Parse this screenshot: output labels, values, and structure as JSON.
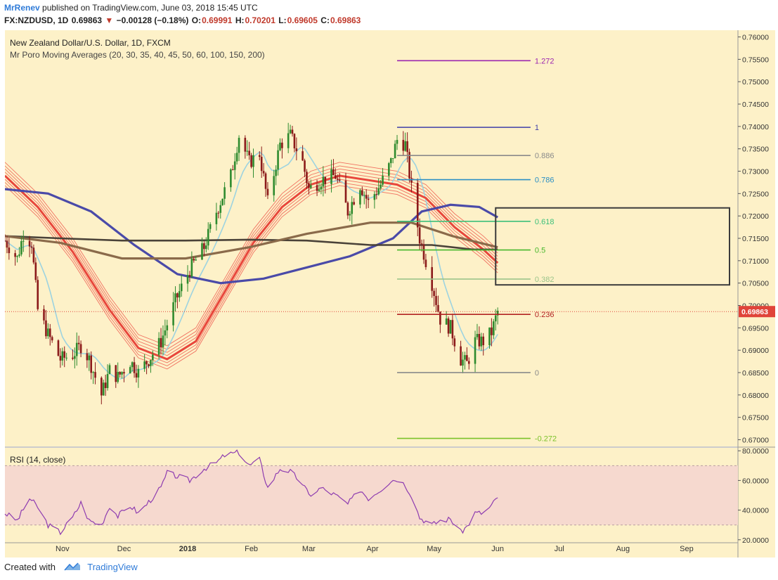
{
  "header": {
    "author": "MrRenev",
    "published": "published on TradingView.com, June 03, 2018 15:45 UTC",
    "symbol": "FX:NZDUSD, 1D",
    "last": "0.69863",
    "change": "−0.00128 (−0.18%)",
    "open_label": "O:",
    "open": "0.69991",
    "high_label": "H:",
    "high": "0.70201",
    "low_label": "L:",
    "low": "0.69605",
    "close_label": "C:",
    "close": "0.69863"
  },
  "footer": {
    "created_with": "Created with",
    "brand": "TradingView"
  },
  "colors": {
    "background": "#fdf1c8",
    "up": "#2e8b2e",
    "down": "#8b1a1a",
    "price_tag": "#e0443a",
    "rsi_band": "#f6d9cf",
    "rsi_line": "#8e3cb0"
  },
  "chart_data": [
    {
      "type": "candlestick",
      "title": "New Zealand Dollar/U.S. Dollar, 1D, FXCM",
      "indicator": "Mr Poro Moving Averages (20, 30, 35, 40, 45, 50, 60, 100, 150, 200)",
      "ylim": [
        0.6685,
        0.7615
      ],
      "y_ticks": [
        "0.76000",
        "0.75500",
        "0.75000",
        "0.74500",
        "0.74000",
        "0.73500",
        "0.73000",
        "0.72500",
        "0.72000",
        "0.71500",
        "0.71000",
        "0.70500",
        "0.70000",
        "0.69500",
        "0.69000",
        "0.68500",
        "0.68000",
        "0.67500",
        "0.67000"
      ],
      "x_ticks": [
        {
          "label": "Nov",
          "date": "2017-11-01"
        },
        {
          "label": "Dec",
          "date": "2017-12-01"
        },
        {
          "label": "2018",
          "date": "2018-01-01"
        },
        {
          "label": "Feb",
          "date": "2018-02-01"
        },
        {
          "label": "Mar",
          "date": "2018-03-01"
        },
        {
          "label": "Apr",
          "date": "2018-04-01"
        },
        {
          "label": "May",
          "date": "2018-05-01"
        },
        {
          "label": "Jun",
          "date": "2018-06-01"
        },
        {
          "label": "Jul",
          "date": "2018-07-01"
        },
        {
          "label": "Aug",
          "date": "2018-08-01"
        },
        {
          "label": "Sep",
          "date": "2018-09-01"
        }
      ],
      "xlim": [
        "2017-10-04",
        "2018-09-26"
      ],
      "last_price": "0.69863",
      "close_path": [
        [
          "2017-10-04",
          0.7145
        ],
        [
          "2017-10-10",
          0.7105
        ],
        [
          "2017-10-13",
          0.716
        ],
        [
          "2017-10-17",
          0.714
        ],
        [
          "2017-10-20",
          0.699
        ],
        [
          "2017-10-25",
          0.6935
        ],
        [
          "2017-10-31",
          0.688
        ],
        [
          "2017-11-06",
          0.689
        ],
        [
          "2017-11-10",
          0.691
        ],
        [
          "2017-11-14",
          0.688
        ],
        [
          "2017-11-17",
          0.684
        ],
        [
          "2017-11-20",
          0.68
        ],
        [
          "2017-11-24",
          0.6855
        ],
        [
          "2017-11-28",
          0.684
        ],
        [
          "2017-12-04",
          0.6875
        ],
        [
          "2017-12-08",
          0.685
        ],
        [
          "2017-12-14",
          0.6885
        ],
        [
          "2017-12-19",
          0.692
        ],
        [
          "2017-12-26",
          0.701
        ],
        [
          "2018-01-02",
          0.708
        ],
        [
          "2018-01-09",
          0.713
        ],
        [
          "2018-01-15",
          0.721
        ],
        [
          "2018-01-22",
          0.729
        ],
        [
          "2018-01-26",
          0.738
        ],
        [
          "2018-01-31",
          0.732
        ],
        [
          "2018-02-05",
          0.734
        ],
        [
          "2018-02-09",
          0.723
        ],
        [
          "2018-02-15",
          0.736
        ],
        [
          "2018-02-20",
          0.738
        ],
        [
          "2018-02-26",
          0.732
        ],
        [
          "2018-03-01",
          0.726
        ],
        [
          "2018-03-07",
          0.728
        ],
        [
          "2018-03-14",
          0.729
        ],
        [
          "2018-03-20",
          0.721
        ],
        [
          "2018-03-26",
          0.727
        ],
        [
          "2018-03-30",
          0.723
        ],
        [
          "2018-04-05",
          0.727
        ],
        [
          "2018-04-10",
          0.732
        ],
        [
          "2018-04-13",
          0.737
        ],
        [
          "2018-04-17",
          0.736
        ],
        [
          "2018-04-20",
          0.726
        ],
        [
          "2018-04-24",
          0.715
        ],
        [
          "2018-04-30",
          0.705
        ],
        [
          "2018-05-04",
          0.697
        ],
        [
          "2018-05-09",
          0.695
        ],
        [
          "2018-05-14",
          0.688
        ],
        [
          "2018-05-17",
          0.687
        ],
        [
          "2018-05-21",
          0.692
        ],
        [
          "2018-05-25",
          0.692
        ],
        [
          "2018-05-29",
          0.694
        ],
        [
          "2018-06-01",
          0.6986
        ]
      ],
      "ma_fast_path": [
        [
          "2017-10-04",
          0.729
        ],
        [
          "2017-10-20",
          0.722
        ],
        [
          "2017-11-06",
          0.712
        ],
        [
          "2017-11-24",
          0.699
        ],
        [
          "2017-12-08",
          0.6905
        ],
        [
          "2017-12-22",
          0.688
        ],
        [
          "2018-01-05",
          0.692
        ],
        [
          "2018-01-19",
          0.703
        ],
        [
          "2018-02-02",
          0.714
        ],
        [
          "2018-02-16",
          0.722
        ],
        [
          "2018-03-02",
          0.727
        ],
        [
          "2018-03-16",
          0.729
        ],
        [
          "2018-03-30",
          0.728
        ],
        [
          "2018-04-13",
          0.727
        ],
        [
          "2018-04-27",
          0.724
        ],
        [
          "2018-05-11",
          0.7175
        ],
        [
          "2018-05-25",
          0.7125
        ],
        [
          "2018-06-01",
          0.7095
        ]
      ],
      "ma_100_path": [
        [
          "2017-10-04",
          0.726
        ],
        [
          "2017-10-25",
          0.725
        ],
        [
          "2017-11-15",
          0.721
        ],
        [
          "2017-12-06",
          0.7135
        ],
        [
          "2017-12-27",
          0.707
        ],
        [
          "2018-01-17",
          0.705
        ],
        [
          "2018-02-07",
          0.706
        ],
        [
          "2018-02-28",
          0.7085
        ],
        [
          "2018-03-21",
          0.711
        ],
        [
          "2018-04-11",
          0.715
        ],
        [
          "2018-04-25",
          0.721
        ],
        [
          "2018-05-09",
          0.7225
        ],
        [
          "2018-05-23",
          0.722
        ],
        [
          "2018-06-01",
          0.7197
        ]
      ],
      "ma_150_path": [
        [
          "2017-10-04",
          0.7155
        ],
        [
          "2017-10-31",
          0.715
        ],
        [
          "2017-11-30",
          0.7145
        ],
        [
          "2017-12-31",
          0.7145
        ],
        [
          "2018-01-31",
          0.7147
        ],
        [
          "2018-02-28",
          0.7145
        ],
        [
          "2018-03-31",
          0.7135
        ],
        [
          "2018-04-30",
          0.7135
        ],
        [
          "2018-05-20",
          0.7125
        ],
        [
          "2018-06-01",
          0.7125
        ]
      ],
      "ma_200_path": [
        [
          "2017-10-04",
          0.7155
        ],
        [
          "2017-10-31",
          0.714
        ],
        [
          "2017-11-30",
          0.7105
        ],
        [
          "2017-12-31",
          0.7105
        ],
        [
          "2018-01-31",
          0.713
        ],
        [
          "2018-02-28",
          0.716
        ],
        [
          "2018-03-31",
          0.7185
        ],
        [
          "2018-04-20",
          0.7185
        ],
        [
          "2018-05-10",
          0.7155
        ],
        [
          "2018-06-01",
          0.713
        ]
      ],
      "fibonacci": {
        "x_range": [
          "2018-04-13",
          "2018-06-17"
        ],
        "levels": [
          {
            "label": "1.272",
            "value": 0.7547,
            "color": "#9c27b0"
          },
          {
            "label": "1",
            "value": 0.7398,
            "color": "#3f3fa8"
          },
          {
            "label": "0.886",
            "value": 0.7335,
            "color": "#8a8a8a"
          },
          {
            "label": "0.786",
            "value": 0.7281,
            "color": "#2b8fc4"
          },
          {
            "label": "0.618",
            "value": 0.7188,
            "color": "#3cc07a"
          },
          {
            "label": "0.5",
            "value": 0.7124,
            "color": "#47b82c"
          },
          {
            "label": "0.382",
            "value": 0.7059,
            "color": "#9bc48a"
          },
          {
            "label": "0.236",
            "value": 0.698,
            "color": "#b22222"
          },
          {
            "label": "0",
            "value": 0.685,
            "color": "#8a8a8a"
          },
          {
            "label": "-0.272",
            "value": 0.6703,
            "color": "#7cc22a"
          }
        ]
      },
      "zone_box": {
        "from": "2018-05-31",
        "to": "2018-09-26",
        "top": 0.7218,
        "bottom": 0.7046
      }
    },
    {
      "type": "line",
      "title": "RSI (14, close)",
      "ylim": [
        18,
        82
      ],
      "y_ticks": [
        "80.0000",
        "60.0000",
        "40.0000",
        "20.0000"
      ],
      "band": [
        30,
        70
      ],
      "values": [
        [
          "2017-10-04",
          38
        ],
        [
          "2017-10-10",
          33
        ],
        [
          "2017-10-16",
          48
        ],
        [
          "2017-10-20",
          42
        ],
        [
          "2017-10-25",
          30
        ],
        [
          "2017-10-31",
          25
        ],
        [
          "2017-11-06",
          35
        ],
        [
          "2017-11-10",
          45
        ],
        [
          "2017-11-14",
          33
        ],
        [
          "2017-11-20",
          30
        ],
        [
          "2017-11-24",
          43
        ],
        [
          "2017-11-28",
          36
        ],
        [
          "2017-12-04",
          43
        ],
        [
          "2017-12-08",
          38
        ],
        [
          "2017-12-14",
          47
        ],
        [
          "2017-12-19",
          55
        ],
        [
          "2017-12-22",
          65
        ],
        [
          "2018-01-02",
          60
        ],
        [
          "2018-01-09",
          68
        ],
        [
          "2018-01-15",
          72
        ],
        [
          "2018-01-19",
          77
        ],
        [
          "2018-01-26",
          79
        ],
        [
          "2018-01-31",
          70
        ],
        [
          "2018-02-05",
          74
        ],
        [
          "2018-02-09",
          55
        ],
        [
          "2018-02-15",
          68
        ],
        [
          "2018-02-20",
          66
        ],
        [
          "2018-02-26",
          58
        ],
        [
          "2018-03-01",
          50
        ],
        [
          "2018-03-07",
          55
        ],
        [
          "2018-03-14",
          50
        ],
        [
          "2018-03-20",
          44
        ],
        [
          "2018-03-26",
          54
        ],
        [
          "2018-03-30",
          48
        ],
        [
          "2018-04-05",
          54
        ],
        [
          "2018-04-10",
          60
        ],
        [
          "2018-04-13",
          61
        ],
        [
          "2018-04-17",
          57
        ],
        [
          "2018-04-20",
          50
        ],
        [
          "2018-04-24",
          35
        ],
        [
          "2018-04-30",
          30
        ],
        [
          "2018-05-04",
          33
        ],
        [
          "2018-05-09",
          34
        ],
        [
          "2018-05-14",
          25
        ],
        [
          "2018-05-17",
          29
        ],
        [
          "2018-05-21",
          38
        ],
        [
          "2018-05-25",
          38
        ],
        [
          "2018-05-29",
          43
        ],
        [
          "2018-06-01",
          49
        ]
      ]
    }
  ]
}
